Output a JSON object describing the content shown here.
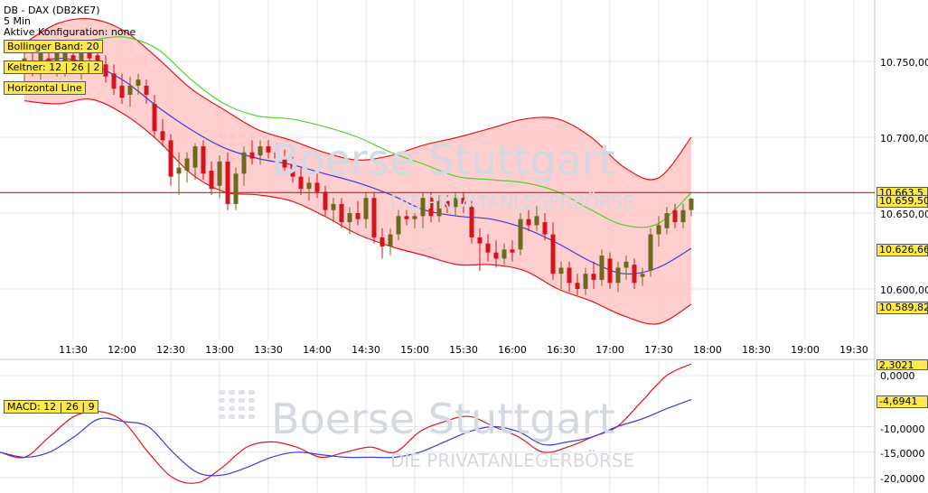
{
  "header": {
    "instrument": "DB - DAX (DB2KE7)",
    "interval": "5 Min",
    "config": "Aktive Konfiguration: none"
  },
  "indicators": {
    "bollinger": "Bollinger Band: 20",
    "keltner": "Keltner: 12 | 26 | 2",
    "horizontal": "Horizontal Line",
    "macd": "MACD: 12 | 26 | 9"
  },
  "watermark": {
    "brand": "Boerse Stuttgart",
    "tagline": "DIE PRIVATANLEGERBÖRSE"
  },
  "price_axis": {
    "ticks": [
      "10.750,00",
      "10.700,00",
      "10.650,00",
      "10.600,00"
    ]
  },
  "price_boxes": [
    "10.663,5",
    "10.659,50",
    "10.626,66",
    "10.589,82"
  ],
  "macd_axis": {
    "ticks": [
      "0,0000",
      "-10,0000",
      "-15,0000",
      "-20,0000"
    ]
  },
  "macd_boxes": [
    "2,3021",
    "-4,6941"
  ],
  "time_axis": [
    "11:30",
    "12:00",
    "12:30",
    "13:00",
    "13:30",
    "14:00",
    "14:30",
    "15:00",
    "15:30",
    "16:00",
    "16:30",
    "17:00",
    "17:30",
    "18:00",
    "18:30",
    "19:00",
    "19:30"
  ],
  "colors": {
    "up": "#6b6a1f",
    "down": "#d4131c",
    "band_fill": "#ffc6c6",
    "band_line": "#e1171c",
    "middle_band": "#3c3ce0",
    "upper_keltner": "#52d22e",
    "horizontal_line": "#cc2020",
    "macd_line": "#e1171c",
    "signal_line": "#3c3ce0",
    "grid": "#e6e6e6",
    "label_bg": "#ffe84a"
  },
  "chart_data": [
    {
      "type": "candlestick",
      "title": "DB - DAX (DB2KE7)",
      "interval": "5 Min",
      "time_axis_ticks": [
        "11:30",
        "12:00",
        "12:30",
        "13:00",
        "13:30",
        "14:00",
        "14:30",
        "15:00",
        "15:30",
        "16:00",
        "16:30",
        "17:00",
        "17:30",
        "18:00",
        "18:30",
        "19:00",
        "19:30"
      ],
      "ylim": [
        10565,
        10780
      ],
      "y_ticks": [
        10600,
        10650,
        10700,
        10750
      ],
      "horizontal_line": 10663.5,
      "last_close": 10659.5,
      "candles": [
        {
          "t": "11:00",
          "o": 10742,
          "h": 10758,
          "l": 10730,
          "c": 10752
        },
        {
          "t": "11:05",
          "o": 10750,
          "h": 10758,
          "l": 10740,
          "c": 10744
        },
        {
          "t": "11:10",
          "o": 10746,
          "h": 10762,
          "l": 10738,
          "c": 10758
        },
        {
          "t": "11:15",
          "o": 10752,
          "h": 10760,
          "l": 10742,
          "c": 10748
        },
        {
          "t": "11:20",
          "o": 10744,
          "h": 10762,
          "l": 10740,
          "c": 10758
        },
        {
          "t": "11:25",
          "o": 10748,
          "h": 10762,
          "l": 10740,
          "c": 10756
        },
        {
          "t": "11:30",
          "o": 10754,
          "h": 10764,
          "l": 10744,
          "c": 10748
        },
        {
          "t": "11:35",
          "o": 10748,
          "h": 10762,
          "l": 10738,
          "c": 10758
        },
        {
          "t": "11:40",
          "o": 10758,
          "h": 10764,
          "l": 10748,
          "c": 10752
        },
        {
          "t": "11:45",
          "o": 10754,
          "h": 10760,
          "l": 10742,
          "c": 10748
        },
        {
          "t": "11:50",
          "o": 10748,
          "h": 10754,
          "l": 10736,
          "c": 10740
        },
        {
          "t": "11:55",
          "o": 10742,
          "h": 10748,
          "l": 10728,
          "c": 10732
        },
        {
          "t": "12:00",
          "o": 10734,
          "h": 10742,
          "l": 10722,
          "c": 10726
        },
        {
          "t": "12:05",
          "o": 10728,
          "h": 10740,
          "l": 10720,
          "c": 10734
        },
        {
          "t": "12:10",
          "o": 10734,
          "h": 10742,
          "l": 10728,
          "c": 10738
        },
        {
          "t": "12:15",
          "o": 10734,
          "h": 10738,
          "l": 10722,
          "c": 10728
        },
        {
          "t": "12:20",
          "o": 10722,
          "h": 10728,
          "l": 10700,
          "c": 10704
        },
        {
          "t": "12:25",
          "o": 10704,
          "h": 10712,
          "l": 10694,
          "c": 10698
        },
        {
          "t": "12:30",
          "o": 10698,
          "h": 10702,
          "l": 10668,
          "c": 10674
        },
        {
          "t": "12:35",
          "o": 10676,
          "h": 10690,
          "l": 10662,
          "c": 10680
        },
        {
          "t": "12:40",
          "o": 10678,
          "h": 10690,
          "l": 10670,
          "c": 10686
        },
        {
          "t": "12:45",
          "o": 10680,
          "h": 10696,
          "l": 10672,
          "c": 10694
        },
        {
          "t": "12:50",
          "o": 10694,
          "h": 10698,
          "l": 10672,
          "c": 10676
        },
        {
          "t": "12:55",
          "o": 10678,
          "h": 10684,
          "l": 10662,
          "c": 10666
        },
        {
          "t": "13:00",
          "o": 10668,
          "h": 10688,
          "l": 10660,
          "c": 10684
        },
        {
          "t": "13:05",
          "o": 10684,
          "h": 10690,
          "l": 10652,
          "c": 10656
        },
        {
          "t": "13:10",
          "o": 10656,
          "h": 10680,
          "l": 10652,
          "c": 10676
        },
        {
          "t": "13:15",
          "o": 10676,
          "h": 10694,
          "l": 10668,
          "c": 10690
        },
        {
          "t": "13:20",
          "o": 10690,
          "h": 10698,
          "l": 10682,
          "c": 10686
        },
        {
          "t": "13:25",
          "o": 10688,
          "h": 10698,
          "l": 10682,
          "c": 10694
        },
        {
          "t": "13:30",
          "o": 10694,
          "h": 10698,
          "l": 10686,
          "c": 10690
        },
        {
          "t": "13:35",
          "o": 10690,
          "h": 10696,
          "l": 10680,
          "c": 10686
        },
        {
          "t": "13:40",
          "o": 10686,
          "h": 10692,
          "l": 10676,
          "c": 10680
        },
        {
          "t": "13:45",
          "o": 10682,
          "h": 10688,
          "l": 10670,
          "c": 10674
        },
        {
          "t": "13:50",
          "o": 10674,
          "h": 10680,
          "l": 10662,
          "c": 10666
        },
        {
          "t": "13:55",
          "o": 10666,
          "h": 10674,
          "l": 10658,
          "c": 10670
        },
        {
          "t": "14:00",
          "o": 10670,
          "h": 10676,
          "l": 10660,
          "c": 10664
        },
        {
          "t": "14:05",
          "o": 10664,
          "h": 10668,
          "l": 10648,
          "c": 10652
        },
        {
          "t": "14:10",
          "o": 10652,
          "h": 10660,
          "l": 10644,
          "c": 10656
        },
        {
          "t": "14:15",
          "o": 10656,
          "h": 10660,
          "l": 10640,
          "c": 10644
        },
        {
          "t": "14:20",
          "o": 10644,
          "h": 10654,
          "l": 10636,
          "c": 10650
        },
        {
          "t": "14:25",
          "o": 10650,
          "h": 10658,
          "l": 10642,
          "c": 10646
        },
        {
          "t": "14:30",
          "o": 10646,
          "h": 10664,
          "l": 10640,
          "c": 10660
        },
        {
          "t": "14:35",
          "o": 10660,
          "h": 10664,
          "l": 10630,
          "c": 10634
        },
        {
          "t": "14:40",
          "o": 10634,
          "h": 10640,
          "l": 10620,
          "c": 10628
        },
        {
          "t": "14:45",
          "o": 10628,
          "h": 10640,
          "l": 10622,
          "c": 10636
        },
        {
          "t": "14:50",
          "o": 10636,
          "h": 10652,
          "l": 10632,
          "c": 10648
        },
        {
          "t": "14:55",
          "o": 10648,
          "h": 10652,
          "l": 10642,
          "c": 10646
        },
        {
          "t": "15:00",
          "o": 10646,
          "h": 10650,
          "l": 10640,
          "c": 10648
        },
        {
          "t": "15:05",
          "o": 10648,
          "h": 10664,
          "l": 10640,
          "c": 10660
        },
        {
          "t": "15:10",
          "o": 10660,
          "h": 10664,
          "l": 10644,
          "c": 10648
        },
        {
          "t": "15:15",
          "o": 10648,
          "h": 10662,
          "l": 10644,
          "c": 10658
        },
        {
          "t": "15:20",
          "o": 10658,
          "h": 10662,
          "l": 10650,
          "c": 10654
        },
        {
          "t": "15:25",
          "o": 10654,
          "h": 10664,
          "l": 10648,
          "c": 10660
        },
        {
          "t": "15:30",
          "o": 10660,
          "h": 10664,
          "l": 10650,
          "c": 10656
        },
        {
          "t": "15:35",
          "o": 10654,
          "h": 10658,
          "l": 10630,
          "c": 10634
        },
        {
          "t": "15:40",
          "o": 10634,
          "h": 10640,
          "l": 10612,
          "c": 10630
        },
        {
          "t": "15:45",
          "o": 10630,
          "h": 10636,
          "l": 10618,
          "c": 10624
        },
        {
          "t": "15:50",
          "o": 10624,
          "h": 10632,
          "l": 10614,
          "c": 10620
        },
        {
          "t": "15:55",
          "o": 10620,
          "h": 10630,
          "l": 10616,
          "c": 10626
        },
        {
          "t": "16:00",
          "o": 10626,
          "h": 10632,
          "l": 10618,
          "c": 10624
        },
        {
          "t": "16:05",
          "o": 10626,
          "h": 10650,
          "l": 10622,
          "c": 10646
        },
        {
          "t": "16:10",
          "o": 10646,
          "h": 10652,
          "l": 10638,
          "c": 10642
        },
        {
          "t": "16:15",
          "o": 10642,
          "h": 10656,
          "l": 10638,
          "c": 10648
        },
        {
          "t": "16:20",
          "o": 10644,
          "h": 10650,
          "l": 10632,
          "c": 10636
        },
        {
          "t": "16:25",
          "o": 10636,
          "h": 10644,
          "l": 10606,
          "c": 10610
        },
        {
          "t": "16:30",
          "o": 10610,
          "h": 10618,
          "l": 10600,
          "c": 10614
        },
        {
          "t": "16:35",
          "o": 10614,
          "h": 10618,
          "l": 10598,
          "c": 10604
        },
        {
          "t": "16:40",
          "o": 10604,
          "h": 10610,
          "l": 10596,
          "c": 10600
        },
        {
          "t": "16:45",
          "o": 10600,
          "h": 10614,
          "l": 10596,
          "c": 10610
        },
        {
          "t": "16:50",
          "o": 10610,
          "h": 10618,
          "l": 10600,
          "c": 10606
        },
        {
          "t": "16:55",
          "o": 10606,
          "h": 10626,
          "l": 10602,
          "c": 10622
        },
        {
          "t": "17:00",
          "o": 10620,
          "h": 10624,
          "l": 10600,
          "c": 10604
        },
        {
          "t": "17:05",
          "o": 10604,
          "h": 10618,
          "l": 10598,
          "c": 10614
        },
        {
          "t": "17:10",
          "o": 10614,
          "h": 10622,
          "l": 10606,
          "c": 10618
        },
        {
          "t": "17:15",
          "o": 10616,
          "h": 10620,
          "l": 10600,
          "c": 10604
        },
        {
          "t": "17:20",
          "o": 10608,
          "h": 10614,
          "l": 10602,
          "c": 10610
        },
        {
          "t": "17:25",
          "o": 10612,
          "h": 10640,
          "l": 10608,
          "c": 10636
        },
        {
          "t": "17:30",
          "o": 10636,
          "h": 10648,
          "l": 10628,
          "c": 10642
        },
        {
          "t": "17:35",
          "o": 10640,
          "h": 10654,
          "l": 10636,
          "c": 10650
        },
        {
          "t": "17:40",
          "o": 10652,
          "h": 10656,
          "l": 10640,
          "c": 10644
        },
        {
          "t": "17:45",
          "o": 10644,
          "h": 10656,
          "l": 10640,
          "c": 10652
        },
        {
          "t": "17:50",
          "o": 10652,
          "h": 10660,
          "l": 10648,
          "c": 10659.5
        }
      ],
      "bollinger_upper": [
        10762,
        10775,
        10778,
        10770,
        10752,
        10732,
        10718,
        10705,
        10698,
        10690,
        10685,
        10688,
        10695,
        10700,
        10706,
        10712,
        10712,
        10700,
        10680,
        10673,
        10700
      ],
      "bollinger_middle": [
        10746,
        10752,
        10748,
        10737,
        10720,
        10705,
        10693,
        10686,
        10682,
        10676,
        10670,
        10662,
        10652,
        10648,
        10646,
        10640,
        10630,
        10618,
        10610,
        10614,
        10626.7
      ],
      "bollinger_lower": [
        10724,
        10722,
        10725,
        10715,
        10698,
        10676,
        10664,
        10662,
        10658,
        10648,
        10636,
        10628,
        10622,
        10616,
        10616,
        10612,
        10600,
        10592,
        10582,
        10577,
        10589.8
      ],
      "keltner_upper": [
        null,
        null,
        10764,
        10766,
        10758,
        10738,
        10722,
        10714,
        10712,
        10707,
        10700,
        10690,
        10682,
        10674,
        10672,
        10670,
        10664,
        10652,
        10642,
        10643,
        10663.5
      ]
    },
    {
      "type": "line",
      "title": "MACD: 12 | 26 | 9",
      "ylim": [
        -21,
        2.5
      ],
      "y_ticks": [
        0,
        -10,
        -15,
        -20
      ],
      "series": [
        {
          "name": "MACD",
          "values": [
            -15,
            -16,
            -12,
            -8,
            -7,
            -9,
            -15,
            -20,
            -21,
            -18,
            -14,
            -13,
            -14,
            -16,
            -15,
            -14,
            -15,
            -11,
            -9,
            -8,
            -10,
            -12,
            -15,
            -14,
            -12,
            -10,
            -5,
            0,
            2.3
          ]
        },
        {
          "name": "Signal",
          "values": [
            -15,
            -16,
            -15,
            -12,
            -8.5,
            -9,
            -10,
            -15,
            -19,
            -19.5,
            -18,
            -16,
            -15,
            -15.5,
            -16,
            -16,
            -16,
            -15,
            -13,
            -11,
            -10,
            -11,
            -13.5,
            -13,
            -12,
            -10,
            -8.5,
            -6.5,
            -4.69
          ]
        }
      ]
    }
  ]
}
